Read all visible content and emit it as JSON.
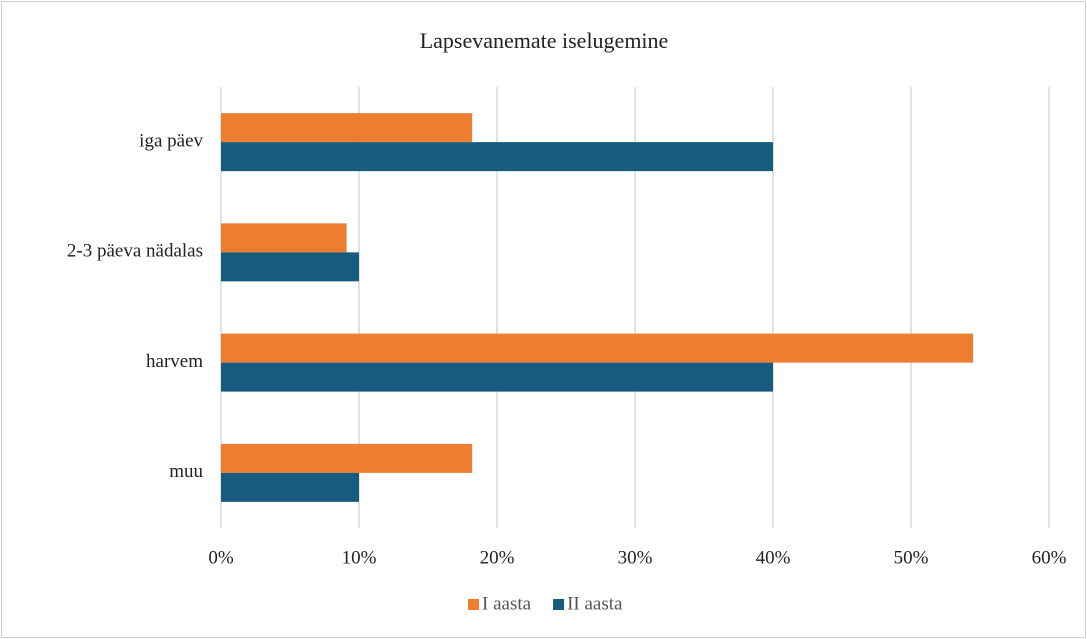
{
  "chart_data": {
    "type": "hbar",
    "title": "Lapsevanemate iselugemine",
    "categories": [
      "iga päev",
      "2-3 päeva nädalas",
      "harvem",
      "muu"
    ],
    "series": [
      {
        "name": "I aasta",
        "color": "#ed7d31",
        "values": [
          18.2,
          9.1,
          54.5,
          18.2
        ]
      },
      {
        "name": "II aasta",
        "color": "#175c7e",
        "values": [
          40,
          10,
          40,
          10
        ]
      }
    ],
    "xlim": [
      0,
      60
    ],
    "xticks": [
      {
        "value": 0,
        "label": "0%"
      },
      {
        "value": 10,
        "label": "10%"
      },
      {
        "value": 20,
        "label": "20%"
      },
      {
        "value": 30,
        "label": "30%"
      },
      {
        "value": 40,
        "label": "40%"
      },
      {
        "value": 50,
        "label": "50%"
      },
      {
        "value": 60,
        "label": "60%"
      }
    ],
    "grid": true,
    "legend": "bottom"
  }
}
